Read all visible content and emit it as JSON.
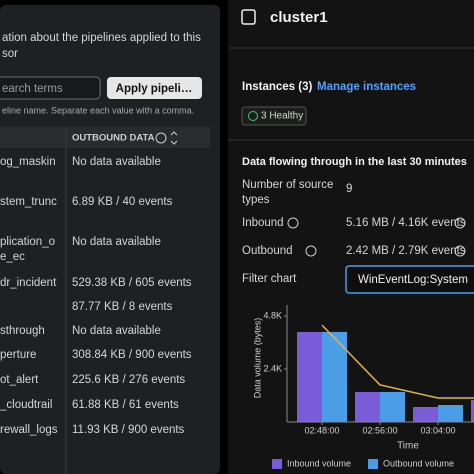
{
  "left_panel": {
    "description_lines": [
      "ation about the pipelines applied to this",
      "sor"
    ],
    "search_placeholder": "earch terms",
    "apply_button": "Apply pipeli…",
    "hint": "eline name. Separate each value with a comma.",
    "table": {
      "outbound_header": "OUTBOUND DATA",
      "rows": [
        {
          "name_lines": [
            "og_maskin"
          ],
          "outbound": "No data available"
        },
        {
          "name_lines": [
            "stem_trunc"
          ],
          "outbound": "6.89 KB / 40 events"
        },
        {
          "name_lines": [
            "plication_o",
            "e_ec"
          ],
          "outbound": "No data available"
        },
        {
          "name_lines": [
            "dr_incident"
          ],
          "outbound": "529.38 KB / 605 events"
        },
        {
          "outbound": "87.77 KB / 8 events"
        },
        {
          "name_lines": [
            "sthrough"
          ],
          "outbound": "No data available"
        },
        {
          "name_lines": [
            "perture"
          ],
          "outbound": "308.84 KB / 900 events"
        },
        {
          "name_lines": [
            "ot_alert"
          ],
          "outbound": "225.6 KB / 276 events"
        },
        {
          "name_lines": [
            "_cloudtrail"
          ],
          "outbound": "61.88 KB / 61 events"
        },
        {
          "name_lines": [
            "rewall_logs"
          ],
          "outbound": "11.93 KB / 900 events"
        }
      ]
    }
  },
  "right_panel": {
    "title": "cluster1",
    "instances_label": "Instances (3)",
    "manage_link": "Manage instances",
    "health_badge": "3 Healthy",
    "flow_title": "Data flowing through in the last 30 minutes",
    "stats": [
      {
        "label_lines": [
          "Number of source",
          "types"
        ],
        "value": "9"
      },
      {
        "label_lines": [
          "Inbound"
        ],
        "value": "5.16 MB / 4.16K events"
      },
      {
        "label_lines": [
          "Outbound"
        ],
        "value": "2.42 MB / 2.79K events"
      }
    ],
    "filter_label": "Filter chart",
    "filter_value": "WinEventLog:System"
  },
  "chart_data": {
    "type": "bar",
    "x_label": "Time",
    "y_label": "Data volume (bytes)",
    "categories": [
      "02:48:00",
      "02:56:00",
      "03:04:00",
      null
    ],
    "ylim": [
      0,
      5300
    ],
    "yticks": [
      {
        "value": 2400,
        "label": "2.4K"
      },
      {
        "value": 4800,
        "label": "4.8K"
      }
    ],
    "series": [
      {
        "name": "Inbound volume",
        "color": "#7a5cd8",
        "values": [
          4080,
          1360,
          680,
          1000
        ]
      },
      {
        "name": "Outbound volume",
        "color": "#4b9de8",
        "values": [
          4080,
          1360,
          770,
          null
        ]
      },
      {
        "type": "line",
        "color": "#e3b341",
        "values": [
          4390,
          1680,
          1090,
          1090
        ]
      }
    ]
  }
}
